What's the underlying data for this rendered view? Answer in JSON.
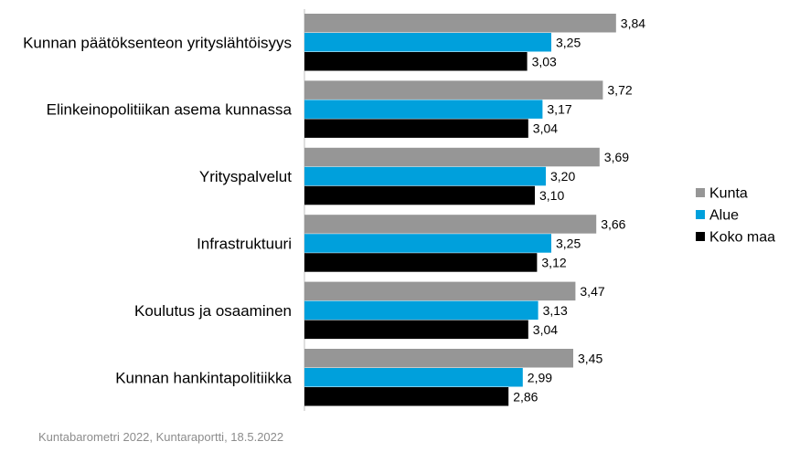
{
  "chart_data": {
    "type": "bar",
    "orientation": "horizontal",
    "categories": [
      "Kunnan päätöksenteon yrityslähtöisyys",
      "Elinkeinopolitiikan asema kunnassa",
      "Yrityspalvelut",
      "Infrastruktuuri",
      "Koulutus ja osaaminen",
      "Kunnan hankintapolitiikka"
    ],
    "series": [
      {
        "name": "Kunta",
        "color": "#969696",
        "values": [
          3.84,
          3.72,
          3.69,
          3.66,
          3.47,
          3.45
        ],
        "labels": [
          "3,84",
          "3,72",
          "3,69",
          "3,66",
          "3,47",
          "3,45"
        ]
      },
      {
        "name": "Alue",
        "color": "#00a0dc",
        "values": [
          3.25,
          3.17,
          3.2,
          3.25,
          3.13,
          2.99
        ],
        "labels": [
          "3,25",
          "3,17",
          "3,20",
          "3,25",
          "3,13",
          "2,99"
        ]
      },
      {
        "name": "Koko maa",
        "color": "#000000",
        "values": [
          3.03,
          3.04,
          3.1,
          3.12,
          3.04,
          2.86
        ],
        "labels": [
          "3,03",
          "3,04",
          "3,10",
          "3,12",
          "3,04",
          "2,86"
        ]
      }
    ],
    "xlim": [
      1,
      5
    ],
    "grid": false,
    "legend_position": "right",
    "source": "Kuntabarometri 2022, Kuntaraportti, 18.5.2022"
  }
}
